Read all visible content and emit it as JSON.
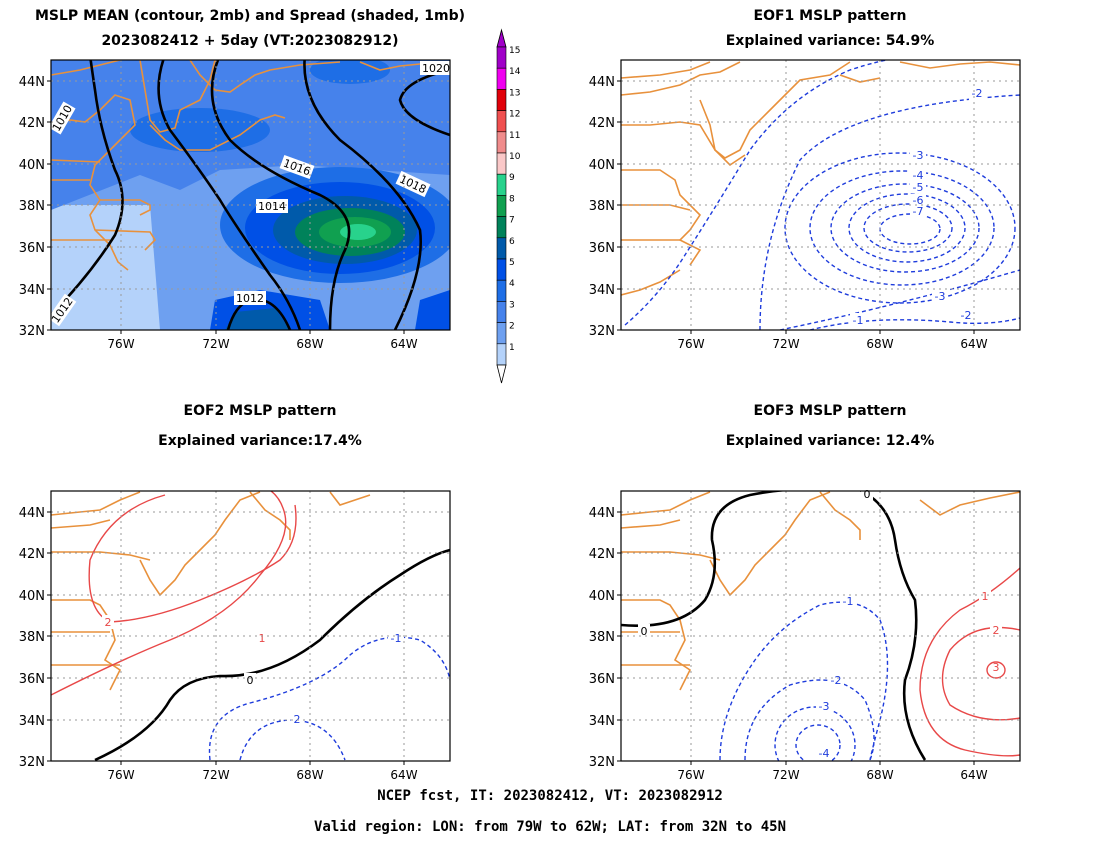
{
  "panels": [
    {
      "id": "mean_spread",
      "title_line1": "MSLP MEAN (contour, 2mb) and Spread (shaded, 1mb)",
      "title_line2": "2023082412 + 5day (VT:2023082912)"
    },
    {
      "id": "eof1",
      "title_line1": "EOF1 MSLP pattern",
      "title_line2": "Explained variance: 54.9%"
    },
    {
      "id": "eof2",
      "title_line1": "EOF2 MSLP pattern",
      "title_line2": "Explained variance:17.4%"
    },
    {
      "id": "eof3",
      "title_line1": "EOF3 MSLP pattern",
      "title_line2": "Explained variance: 12.4%"
    }
  ],
  "axes": {
    "lat_labels": [
      "44N",
      "42N",
      "40N",
      "38N",
      "36N",
      "34N",
      "32N"
    ],
    "lon_labels": [
      "76W",
      "72W",
      "68W",
      "64W"
    ]
  },
  "colorbar": {
    "labels": [
      "15",
      "14",
      "13",
      "12",
      "11",
      "10",
      "9",
      "8",
      "7",
      "6",
      "5",
      "4",
      "3",
      "2",
      "1"
    ],
    "colors": [
      "#a000c8",
      "#f000f0",
      "#e0000a",
      "#f05050",
      "#f08c8c",
      "#fac8c8",
      "#28d28c",
      "#10a050",
      "#00825a",
      "#005aaa",
      "#0050e6",
      "#1e6ee6",
      "#4682eb",
      "#6ea0f0",
      "#b4d2fa"
    ]
  },
  "mean_contour_labels": [
    "1010",
    "1012",
    "1012",
    "1014",
    "1016",
    "1018",
    "1020"
  ],
  "eof1_labels": [
    "-2",
    "-3",
    "-4",
    "-5",
    "-6",
    "-7",
    "-3",
    "-2",
    "-1"
  ],
  "eof2_labels": [
    "2",
    "1",
    "0",
    "-1",
    "-2"
  ],
  "eof3_labels": [
    "0",
    "0",
    "-1",
    "-2",
    "-3",
    "-4",
    "1",
    "2",
    "3"
  ],
  "colors": {
    "coast": "#e8913c",
    "contour": "#000000",
    "negative": "#1e3cdc",
    "positive": "#e84848",
    "grid": "#9a9a9a"
  },
  "footer": {
    "line1": "NCEP fcst, IT: 2023082412, VT: 2023082912",
    "line2": "Valid region: LON: from 79W to 62W; LAT: from 32N to 45N"
  }
}
